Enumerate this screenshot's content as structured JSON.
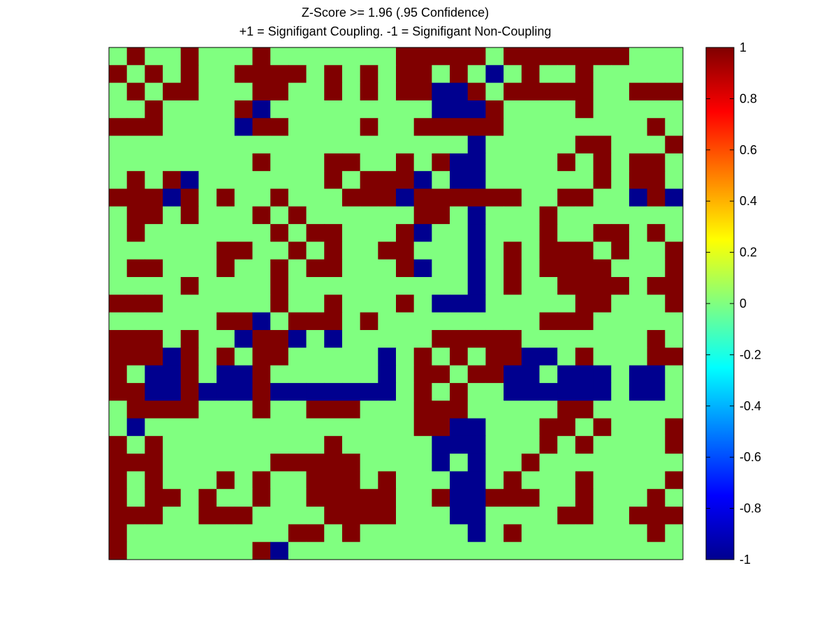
{
  "chart_data": {
    "type": "heatmap",
    "title": "Z-Score >= 1.96 (.95 Confidence)",
    "subtitle": "+1 = Signifigant Coupling. -1 = Signifigant Non-Coupling",
    "xlabel": "",
    "ylabel": "",
    "value_range": [
      -1,
      1
    ],
    "colormap": "jet",
    "colors": {
      "1": "#800000",
      "0": "#80ff80",
      "-1": "#00008f"
    },
    "colorbar_ticks": [
      "1",
      "0.8",
      "0.6",
      "0.4",
      "0.2",
      "0",
      "-0.2",
      "-0.4",
      "-0.6",
      "-0.8",
      "-1"
    ],
    "rows": 29,
    "cols": 32,
    "grid": false,
    "matrix": [
      [
        0,
        1,
        0,
        0,
        1,
        0,
        0,
        0,
        1,
        0,
        0,
        0,
        0,
        0,
        0,
        0,
        1,
        1,
        1,
        1,
        1,
        0,
        1,
        1,
        1,
        1,
        1,
        1,
        1,
        0,
        0,
        0
      ],
      [
        1,
        0,
        1,
        0,
        1,
        0,
        0,
        1,
        1,
        1,
        1,
        0,
        1,
        0,
        1,
        0,
        1,
        1,
        0,
        1,
        0,
        -1,
        0,
        1,
        0,
        0,
        1,
        0,
        0,
        0,
        0,
        0
      ],
      [
        0,
        1,
        0,
        1,
        1,
        0,
        0,
        0,
        1,
        1,
        0,
        0,
        1,
        0,
        1,
        0,
        1,
        1,
        -1,
        -1,
        1,
        0,
        1,
        1,
        1,
        1,
        1,
        0,
        0,
        1,
        1,
        1
      ],
      [
        0,
        0,
        1,
        0,
        0,
        0,
        0,
        1,
        -1,
        0,
        0,
        0,
        0,
        0,
        0,
        0,
        0,
        0,
        -1,
        -1,
        -1,
        1,
        0,
        0,
        0,
        0,
        1,
        0,
        0,
        0,
        0,
        0
      ],
      [
        1,
        1,
        1,
        0,
        0,
        0,
        0,
        -1,
        1,
        1,
        0,
        0,
        0,
        0,
        1,
        0,
        0,
        1,
        1,
        1,
        1,
        1,
        0,
        0,
        0,
        0,
        0,
        0,
        0,
        0,
        1,
        0
      ],
      [
        0,
        0,
        0,
        0,
        0,
        0,
        0,
        0,
        0,
        0,
        0,
        0,
        0,
        0,
        0,
        0,
        0,
        0,
        0,
        0,
        -1,
        0,
        0,
        0,
        0,
        0,
        1,
        1,
        0,
        0,
        0,
        1
      ],
      [
        0,
        0,
        0,
        0,
        0,
        0,
        0,
        0,
        1,
        0,
        0,
        0,
        1,
        1,
        0,
        0,
        1,
        0,
        1,
        -1,
        -1,
        0,
        0,
        0,
        0,
        1,
        0,
        1,
        0,
        1,
        1,
        0
      ],
      [
        0,
        1,
        0,
        1,
        -1,
        0,
        0,
        0,
        0,
        0,
        0,
        0,
        1,
        0,
        1,
        1,
        1,
        -1,
        0,
        -1,
        -1,
        0,
        0,
        0,
        0,
        0,
        0,
        1,
        0,
        1,
        1,
        0
      ],
      [
        1,
        1,
        1,
        -1,
        1,
        0,
        1,
        0,
        0,
        1,
        0,
        0,
        0,
        1,
        1,
        1,
        -1,
        1,
        1,
        1,
        1,
        1,
        1,
        0,
        0,
        1,
        1,
        0,
        0,
        -1,
        1,
        -1
      ],
      [
        0,
        1,
        1,
        0,
        1,
        0,
        0,
        0,
        1,
        0,
        1,
        0,
        0,
        0,
        0,
        0,
        0,
        1,
        1,
        0,
        -1,
        0,
        0,
        0,
        1,
        0,
        0,
        0,
        0,
        0,
        0,
        0
      ],
      [
        0,
        1,
        0,
        0,
        0,
        0,
        0,
        0,
        0,
        1,
        0,
        1,
        1,
        0,
        0,
        0,
        1,
        -1,
        0,
        0,
        -1,
        0,
        0,
        0,
        1,
        0,
        0,
        1,
        1,
        0,
        1,
        0
      ],
      [
        0,
        0,
        0,
        0,
        0,
        0,
        1,
        1,
        0,
        0,
        1,
        0,
        1,
        0,
        0,
        1,
        1,
        0,
        0,
        0,
        -1,
        0,
        1,
        0,
        1,
        1,
        1,
        0,
        1,
        0,
        0,
        1
      ],
      [
        0,
        1,
        1,
        0,
        0,
        0,
        1,
        0,
        0,
        1,
        0,
        1,
        1,
        0,
        0,
        0,
        1,
        -1,
        0,
        0,
        -1,
        0,
        1,
        0,
        1,
        1,
        1,
        1,
        0,
        0,
        0,
        1
      ],
      [
        0,
        0,
        0,
        0,
        1,
        0,
        0,
        0,
        0,
        1,
        0,
        0,
        0,
        0,
        0,
        0,
        0,
        0,
        0,
        0,
        -1,
        0,
        1,
        0,
        0,
        1,
        1,
        1,
        1,
        0,
        1,
        1
      ],
      [
        1,
        1,
        1,
        0,
        0,
        0,
        0,
        0,
        0,
        1,
        0,
        0,
        1,
        0,
        0,
        0,
        1,
        0,
        -1,
        -1,
        -1,
        0,
        0,
        0,
        0,
        0,
        1,
        1,
        0,
        0,
        0,
        1
      ],
      [
        0,
        0,
        0,
        0,
        0,
        0,
        1,
        1,
        -1,
        0,
        1,
        1,
        1,
        0,
        1,
        0,
        0,
        0,
        0,
        0,
        0,
        0,
        0,
        0,
        1,
        1,
        1,
        0,
        0,
        0,
        0,
        0
      ],
      [
        1,
        1,
        1,
        0,
        1,
        0,
        0,
        -1,
        1,
        1,
        -1,
        0,
        -1,
        0,
        0,
        0,
        0,
        0,
        1,
        1,
        1,
        1,
        1,
        0,
        0,
        0,
        0,
        0,
        0,
        0,
        1,
        0
      ],
      [
        1,
        1,
        1,
        -1,
        1,
        0,
        1,
        0,
        1,
        1,
        0,
        0,
        0,
        0,
        0,
        -1,
        0,
        1,
        0,
        1,
        0,
        1,
        1,
        -1,
        -1,
        0,
        1,
        0,
        0,
        0,
        1,
        1
      ],
      [
        1,
        0,
        -1,
        -1,
        1,
        0,
        -1,
        -1,
        1,
        0,
        0,
        0,
        0,
        0,
        0,
        -1,
        0,
        1,
        1,
        0,
        1,
        1,
        -1,
        -1,
        0,
        -1,
        -1,
        -1,
        0,
        -1,
        -1,
        0
      ],
      [
        1,
        1,
        -1,
        -1,
        1,
        -1,
        -1,
        -1,
        1,
        -1,
        -1,
        -1,
        -1,
        -1,
        -1,
        -1,
        0,
        1,
        0,
        1,
        0,
        0,
        -1,
        -1,
        -1,
        -1,
        -1,
        -1,
        0,
        -1,
        -1,
        0
      ],
      [
        0,
        1,
        1,
        1,
        1,
        0,
        0,
        0,
        1,
        0,
        0,
        1,
        1,
        1,
        0,
        0,
        0,
        1,
        1,
        1,
        0,
        0,
        0,
        0,
        0,
        1,
        1,
        0,
        0,
        0,
        0,
        0
      ],
      [
        0,
        -1,
        0,
        0,
        0,
        0,
        0,
        0,
        0,
        0,
        0,
        0,
        0,
        0,
        0,
        0,
        0,
        1,
        1,
        -1,
        -1,
        0,
        0,
        0,
        1,
        1,
        0,
        1,
        0,
        0,
        0,
        1
      ],
      [
        1,
        0,
        1,
        0,
        0,
        0,
        0,
        0,
        0,
        0,
        0,
        0,
        1,
        0,
        0,
        0,
        0,
        0,
        -1,
        -1,
        -1,
        0,
        0,
        0,
        1,
        0,
        1,
        0,
        0,
        0,
        0,
        1
      ],
      [
        1,
        1,
        1,
        0,
        0,
        0,
        0,
        0,
        0,
        1,
        1,
        1,
        1,
        1,
        0,
        0,
        0,
        0,
        -1,
        0,
        -1,
        0,
        0,
        1,
        0,
        0,
        0,
        0,
        0,
        0,
        0,
        0
      ],
      [
        1,
        0,
        1,
        0,
        0,
        0,
        1,
        0,
        1,
        0,
        0,
        1,
        1,
        1,
        0,
        1,
        0,
        0,
        0,
        -1,
        -1,
        0,
        1,
        0,
        0,
        0,
        1,
        0,
        0,
        0,
        0,
        1
      ],
      [
        1,
        0,
        1,
        1,
        0,
        1,
        0,
        0,
        1,
        0,
        0,
        1,
        1,
        1,
        1,
        1,
        0,
        0,
        1,
        -1,
        -1,
        1,
        1,
        1,
        0,
        0,
        1,
        0,
        0,
        0,
        1,
        0
      ],
      [
        1,
        1,
        1,
        0,
        0,
        1,
        1,
        1,
        0,
        0,
        0,
        0,
        1,
        1,
        1,
        1,
        0,
        0,
        0,
        -1,
        -1,
        0,
        0,
        0,
        0,
        1,
        1,
        0,
        0,
        1,
        1,
        1
      ],
      [
        1,
        0,
        0,
        0,
        0,
        0,
        0,
        0,
        0,
        0,
        1,
        1,
        0,
        1,
        0,
        0,
        0,
        0,
        0,
        0,
        -1,
        0,
        1,
        0,
        0,
        0,
        0,
        0,
        0,
        0,
        1,
        0
      ],
      [
        1,
        0,
        0,
        0,
        0,
        0,
        0,
        0,
        1,
        -1,
        0,
        0,
        0,
        0,
        0,
        0,
        0,
        0,
        0,
        0,
        0,
        0,
        0,
        0,
        0,
        0,
        0,
        0,
        0,
        0,
        0,
        0
      ]
    ]
  }
}
